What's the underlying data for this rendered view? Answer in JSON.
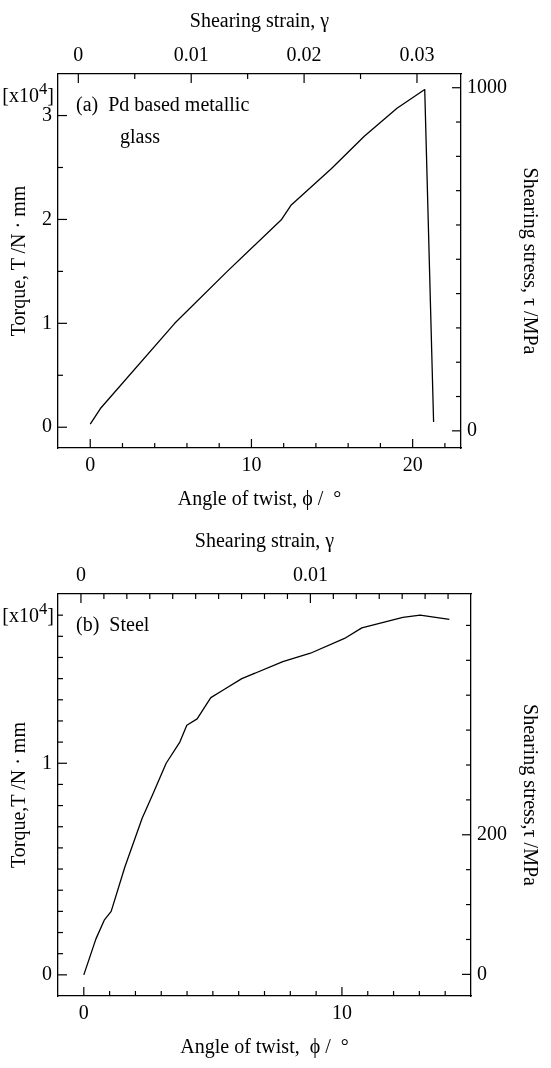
{
  "chart_data": [
    {
      "type": "line",
      "xlabel": "Angle of twist, ϕ /  °",
      "ylabel": "Torque, T /N · mm",
      "x2label": "Shearing strain, γ",
      "y2label": "Shearing stress, τ /MPa",
      "annotations": [
        "[x10$^{4}$]",
        "(a)  Pd based metallic glass"
      ],
      "x": [
        0,
        0.63,
        5.24,
        8.5,
        11.87,
        12.47,
        14.97,
        17,
        19.03,
        20.75,
        21.3
      ],
      "values": [
        0.03,
        0.18,
        1.0,
        1.5,
        2.0,
        2.14,
        2.49,
        2.8,
        3.07,
        3.25,
        0.05
      ],
      "color": "#000000",
      "xlim": [
        -2,
        23
      ],
      "xticks": [
        0,
        {
          "value": 2,
          "label": null
        },
        {
          "value": 4,
          "label": null
        },
        {
          "value": 6,
          "label": null
        },
        {
          "value": 8,
          "label": null
        },
        10,
        {
          "value": 12,
          "label": null
        },
        {
          "value": 14,
          "label": null
        },
        {
          "value": 16,
          "label": null
        },
        {
          "value": 18,
          "label": null
        },
        20,
        {
          "value": 22,
          "label": null
        }
      ],
      "ylim": [
        -0.2,
        3.4
      ],
      "yticks": [
        0,
        {
          "value": 0.5,
          "label": null
        },
        1,
        {
          "value": 1.5,
          "label": null
        },
        2,
        {
          "value": 2.5,
          "label": null
        },
        3
      ],
      "x2lim": [
        -0.0018,
        0.0339
      ],
      "x2ticks": [
        0,
        {
          "value": 0.005,
          "label": null
        },
        0.01,
        {
          "value": 0.015,
          "label": null
        },
        0.02,
        {
          "value": 0.025,
          "label": null
        },
        0.03
      ],
      "y2lim": [
        -50,
        1040
      ],
      "y2ticks": [
        0,
        {
          "value": 100,
          "label": null
        },
        {
          "value": 200,
          "label": null
        },
        {
          "value": 300,
          "label": null
        },
        {
          "value": 400,
          "label": null
        },
        {
          "value": 500,
          "label": null
        },
        {
          "value": 600,
          "label": null
        },
        {
          "value": 700,
          "label": null
        },
        {
          "value": 800,
          "label": null
        },
        {
          "value": 900,
          "label": null
        },
        1000
      ]
    },
    {
      "type": "line",
      "xlabel": "Angle of twist,  ϕ /  °",
      "ylabel": "Torque,T /N · mm",
      "x2label": "Shearing strain, γ",
      "y2label": "Shearing stress,τ /MPa",
      "annotations": [
        "[x10$^{4}$]",
        "(b)  Steel"
      ],
      "x": [
        0,
        0.47,
        0.8,
        1.06,
        1.59,
        2.26,
        2.66,
        3.19,
        3.72,
        3.99,
        4.39,
        4.92,
        5.45,
        6.12,
        7.71,
        8.78,
        10.1,
        10.77,
        12.36,
        13.03,
        14.16
      ],
      "values": [
        0,
        0.17,
        0.26,
        0.3,
        0.51,
        0.74,
        0.85,
        1.0,
        1.1,
        1.18,
        1.21,
        1.31,
        1.35,
        1.4,
        1.48,
        1.52,
        1.59,
        1.64,
        1.69,
        1.7,
        1.68
      ],
      "color": "#000000",
      "xlim": [
        -1,
        15
      ],
      "xticks": [
        0,
        {
          "value": 1,
          "label": null
        },
        {
          "value": 2,
          "label": null
        },
        {
          "value": 3,
          "label": null
        },
        {
          "value": 4,
          "label": null
        },
        {
          "value": 5,
          "label": null
        },
        {
          "value": 6,
          "label": null
        },
        {
          "value": 7,
          "label": null
        },
        {
          "value": 8,
          "label": null
        },
        {
          "value": 9,
          "label": null
        },
        10,
        {
          "value": 11,
          "label": null
        },
        {
          "value": 12,
          "label": null
        },
        {
          "value": 13,
          "label": null
        },
        {
          "value": 14,
          "label": null
        }
      ],
      "ylim": [
        -0.1,
        1.8
      ],
      "yticks": [
        0,
        {
          "value": 0.1,
          "label": null
        },
        {
          "value": 0.2,
          "label": null
        },
        {
          "value": 0.3,
          "label": null
        },
        {
          "value": 0.4,
          "label": null
        },
        {
          "value": 0.5,
          "label": null
        },
        {
          "value": 0.6,
          "label": null
        },
        {
          "value": 0.7,
          "label": null
        },
        {
          "value": 0.8,
          "label": null
        },
        {
          "value": 0.9,
          "label": null
        },
        1,
        {
          "value": 1.1,
          "label": null
        },
        {
          "value": 1.2,
          "label": null
        },
        {
          "value": 1.3,
          "label": null
        },
        {
          "value": 1.4,
          "label": null
        },
        {
          "value": 1.5,
          "label": null
        },
        {
          "value": 1.6,
          "label": null
        },
        {
          "value": 1.7,
          "label": null
        }
      ],
      "x2lim": [
        -0.001,
        0.017
      ],
      "x2ticks": [
        0,
        {
          "value": 0.001,
          "label": null
        },
        {
          "value": 0.002,
          "label": null
        },
        {
          "value": 0.003,
          "label": null
        },
        {
          "value": 0.004,
          "label": null
        },
        {
          "value": 0.005,
          "label": null
        },
        {
          "value": 0.006,
          "label": null
        },
        {
          "value": 0.007,
          "label": null
        },
        {
          "value": 0.008,
          "label": null
        },
        {
          "value": 0.009,
          "label": null
        },
        0.01,
        {
          "value": 0.011,
          "label": null
        },
        {
          "value": 0.012,
          "label": null
        },
        {
          "value": 0.013,
          "label": null
        },
        {
          "value": 0.014,
          "label": null
        },
        {
          "value": 0.015,
          "label": null
        },
        {
          "value": 0.016,
          "label": null
        }
      ],
      "y2lim": [
        -31,
        545
      ],
      "y2ticks": [
        0,
        {
          "value": 50,
          "label": null
        },
        {
          "value": 100,
          "label": null
        },
        {
          "value": 150,
          "label": null
        },
        200,
        {
          "value": 250,
          "label": null
        },
        {
          "value": 300,
          "label": null
        },
        {
          "value": 350,
          "label": null
        },
        {
          "value": 400,
          "label": null
        },
        {
          "value": 450,
          "label": null
        },
        {
          "value": 500,
          "label": null
        }
      ]
    }
  ]
}
